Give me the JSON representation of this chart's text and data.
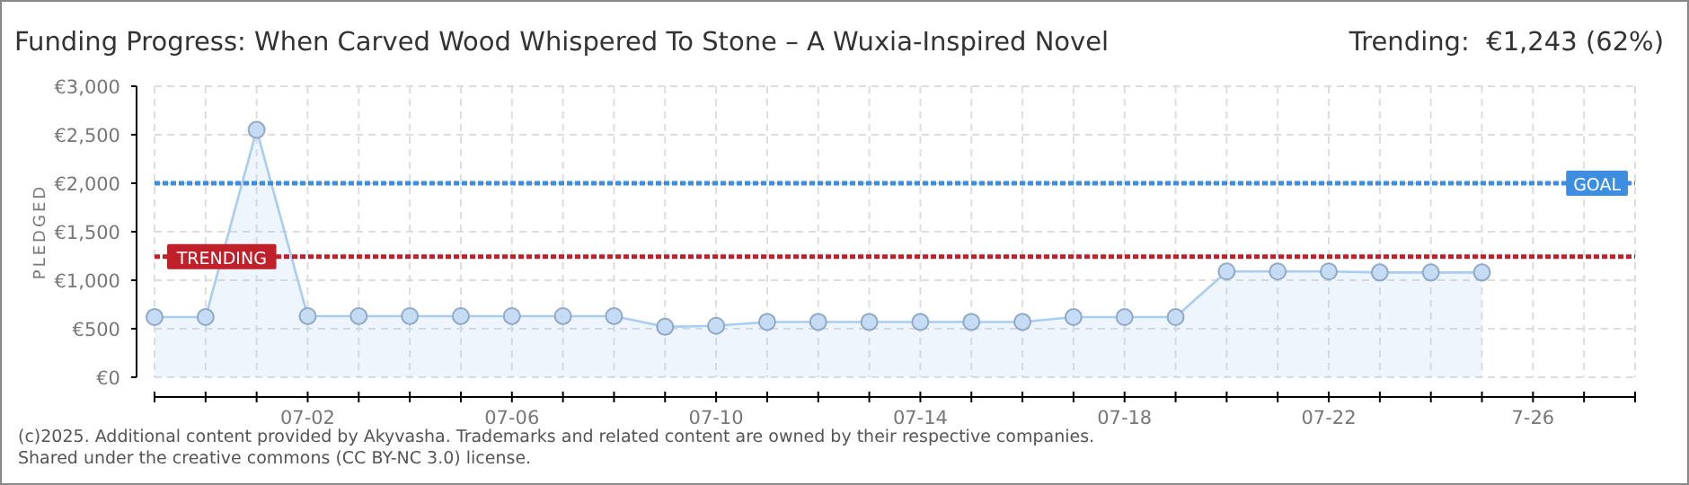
{
  "chart_data": {
    "type": "area",
    "title": "Funding Progress: When Carved Wood Whispered To Stone – A Wuxia-Inspired Novel",
    "subtitle": "Trending:  €1,243 (62%)",
    "ylabel": "PLEDGED",
    "x": [
      "--06-29",
      "--06-30",
      "--07-01",
      "--07-02",
      "--07-03",
      "--07-04",
      "--07-05",
      "--07-06",
      "--07-07",
      "--07-08",
      "--07-09",
      "--07-10",
      "--07-11",
      "--07-12",
      "--07-13",
      "--07-14",
      "--07-15",
      "--07-16",
      "--07-17",
      "--07-18",
      "--07-19",
      "--07-20",
      "--07-21",
      "--07-22",
      "--07-23",
      "--07-24",
      "--07-25"
    ],
    "series": [
      {
        "color": "#a9cdf0",
        "values": [
          620,
          620,
          2550,
          630,
          630,
          630,
          630,
          630,
          630,
          630,
          520,
          530,
          570,
          570,
          570,
          570,
          570,
          570,
          620,
          620,
          620,
          1090,
          1090,
          1090,
          1080,
          1080,
          1080
        ]
      }
    ],
    "xlim": [
      "--06-29",
      "--07-28"
    ],
    "xticks": [
      {
        "value": "--06-29",
        "label": null
      },
      {
        "value": "--06-30",
        "label": null
      },
      {
        "value": "--07-01",
        "label": null
      },
      {
        "value": "--07-02",
        "label": "07-02"
      },
      {
        "value": "--07-03",
        "label": null
      },
      {
        "value": "--07-04",
        "label": null
      },
      {
        "value": "--07-05",
        "label": null
      },
      {
        "value": "--07-06",
        "label": "07-06"
      },
      {
        "value": "--07-07",
        "label": null
      },
      {
        "value": "--07-08",
        "label": null
      },
      {
        "value": "--07-09",
        "label": null
      },
      {
        "value": "--07-10",
        "label": "07-10"
      },
      {
        "value": "--07-11",
        "label": null
      },
      {
        "value": "--07-12",
        "label": null
      },
      {
        "value": "--07-13",
        "label": null
      },
      {
        "value": "--07-14",
        "label": "07-14"
      },
      {
        "value": "--07-15",
        "label": null
      },
      {
        "value": "--07-16",
        "label": null
      },
      {
        "value": "--07-17",
        "label": null
      },
      {
        "value": "--07-18",
        "label": "07-18"
      },
      {
        "value": "--07-19",
        "label": null
      },
      {
        "value": "--07-20",
        "label": null
      },
      {
        "value": "--07-21",
        "label": null
      },
      {
        "value": "--07-22",
        "label": "07-22"
      },
      {
        "value": "--07-23",
        "label": null
      },
      {
        "value": "--07-24",
        "label": null
      },
      {
        "value": "--07-25",
        "label": null
      },
      {
        "value": "--07-26",
        "label": "7-26"
      },
      {
        "value": "--07-27",
        "label": null
      },
      {
        "value": "--07-28",
        "label": null
      }
    ],
    "ylim": [
      0,
      3000
    ],
    "yticks": [
      {
        "value": 0,
        "label": "€0"
      },
      {
        "value": 500,
        "label": "€500"
      },
      {
        "value": 1000,
        "label": "€1,000"
      },
      {
        "value": 1500,
        "label": "€1,500"
      },
      {
        "value": 2000,
        "label": "€2,000"
      },
      {
        "value": 2500,
        "label": "€2,500"
      },
      {
        "value": 3000,
        "label": "€3,000"
      }
    ],
    "grid": true,
    "marker": "circle",
    "ref_lines": [
      {
        "axis": "y",
        "value": 2000,
        "label": "GOAL",
        "color": "#3d8ee0",
        "line_style": "dotted"
      },
      {
        "axis": "y",
        "value": 1243,
        "label": "TRENDING",
        "color": "#c0202a",
        "line_style": "dotted"
      }
    ],
    "annotations": [
      "(c)2025. Additional content provided by Akyvasha. Trademarks and related content are owned by their respective companies.",
      "Shared under the creative commons (CC BY-NC 3.0) license."
    ]
  }
}
